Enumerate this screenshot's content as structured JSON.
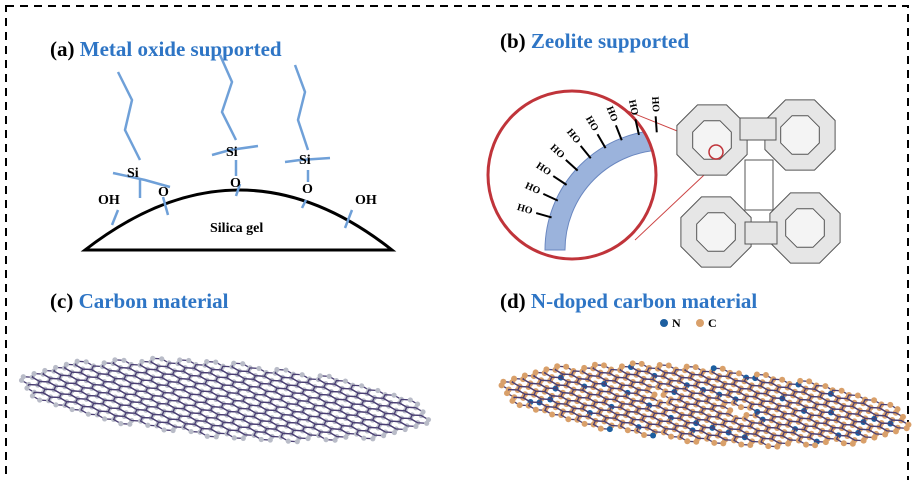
{
  "panels": [
    {
      "letter": "(a)",
      "title": "Metal oxide supported",
      "labels": [
        "Si",
        "Si",
        "Si",
        "O",
        "O",
        "O",
        "OH",
        "OH",
        "Silica gel"
      ]
    },
    {
      "letter": "(b)",
      "title": "Zeolite supported",
      "labels": [
        "HO",
        "HO",
        "HO",
        "HO",
        "HO",
        "HO",
        "HO",
        "HO",
        "HO"
      ]
    },
    {
      "letter": "(c)",
      "title": "Carbon material",
      "labels": []
    },
    {
      "letter": "(d)",
      "title": "N-doped carbon material",
      "labels": [
        "N",
        "C"
      ]
    }
  ]
}
